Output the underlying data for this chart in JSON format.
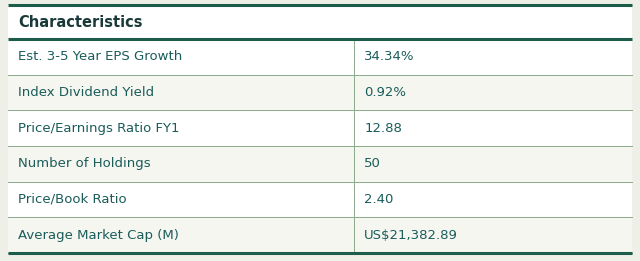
{
  "title": "Characteristics",
  "rows": [
    [
      "Est. 3-5 Year EPS Growth",
      "34.34%"
    ],
    [
      "Index Dividend Yield",
      "0.92%"
    ],
    [
      "Price/Earnings Ratio FY1",
      "12.88"
    ],
    [
      "Number of Holdings",
      "50"
    ],
    [
      "Price/Book Ratio",
      "2.40"
    ],
    [
      "Average Market Cap (M)",
      "US$21,382.89"
    ]
  ],
  "col_split": 0.555,
  "header_bg": "#ffffff",
  "row_bg_light": "#f5f6f0",
  "row_bg_white": "#ffffff",
  "header_text_color": "#1a3a3a",
  "cell_text_color": "#1a5c5a",
  "thick_border_color": "#1c5c4a",
  "thin_border_color": "#8aab8a",
  "title_fontsize": 10.5,
  "cell_fontsize": 9.5,
  "bg_color": "#ffffff",
  "fig_bg": "#eef0e8"
}
